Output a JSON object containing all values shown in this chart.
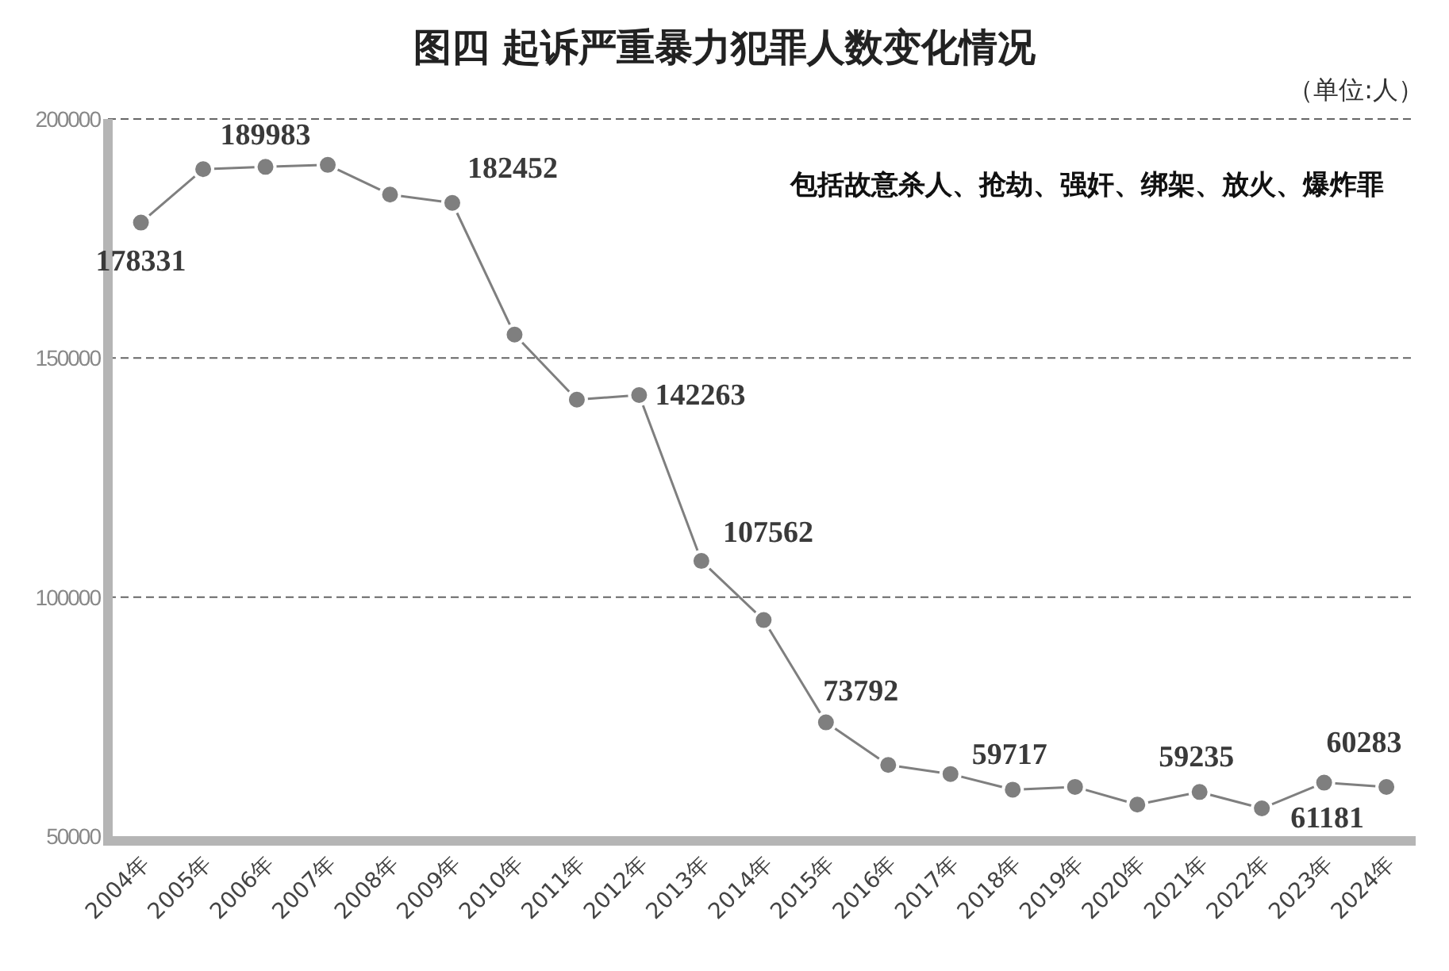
{
  "chart_data": {
    "type": "line",
    "title": "图四  起诉严重暴力犯罪人数变化情况",
    "annotations": [
      "（单位:人）",
      "包括故意杀人、抢劫、强奸、绑架、放火、爆炸罪"
    ],
    "categories": [
      "2004年",
      "2005年",
      "2006年",
      "2007年",
      "2008年",
      "2009年",
      "2010年",
      "2011年",
      "2012年",
      "2013年",
      "2014年",
      "2015年",
      "2016年",
      "2017年",
      "2018年",
      "2019年",
      "2020年",
      "2021年",
      "2022年",
      "2023年",
      "2024年"
    ],
    "series": [
      {
        "color": "#7f7f7f",
        "values": [
          178331,
          189500,
          189983,
          190400,
          184200,
          182452,
          154900,
          141300,
          142263,
          107562,
          95200,
          73792,
          64900,
          63000,
          59717,
          60300,
          56600,
          59235,
          55800,
          61181,
          60283
        ],
        "value_labels": [
          "178331",
          null,
          "189983",
          null,
          null,
          "182452",
          null,
          null,
          "142263",
          "107562",
          null,
          "73792",
          null,
          null,
          "59717",
          null,
          null,
          "59235",
          null,
          "61181",
          "60283"
        ]
      }
    ],
    "ylim": [
      50000,
      200000
    ],
    "yticks": [
      50000,
      100000,
      150000,
      200000
    ],
    "grid": "y",
    "marker": "circle",
    "line_style": "solid"
  }
}
